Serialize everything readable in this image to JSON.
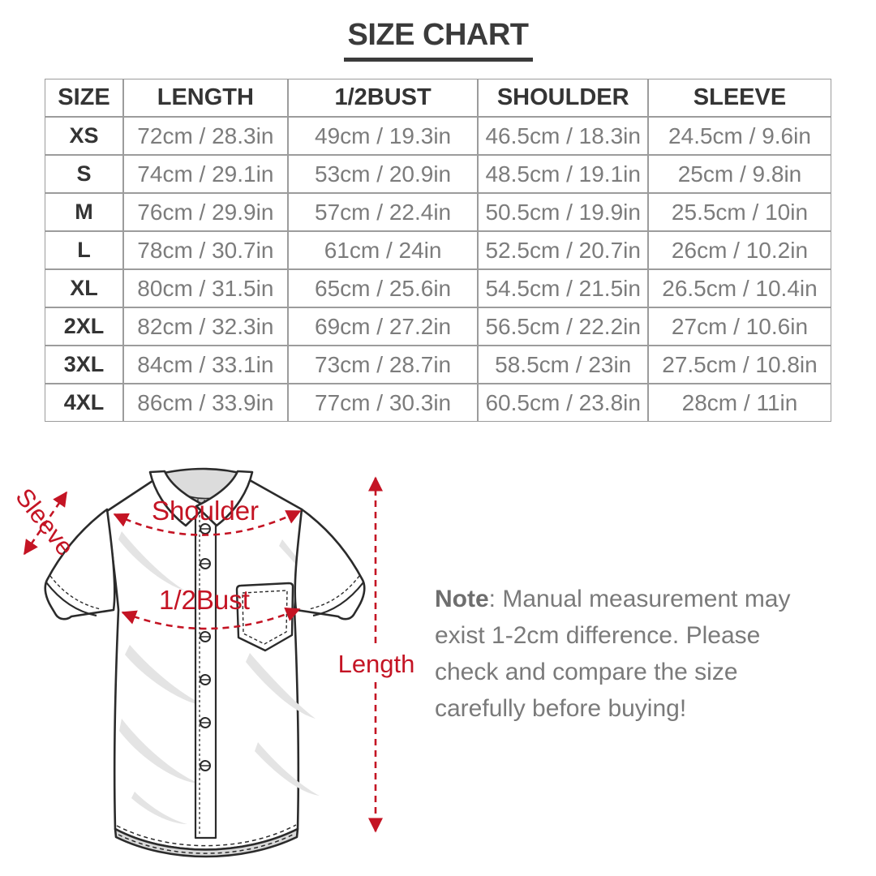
{
  "title": "SIZE CHART",
  "chart_data": {
    "type": "table",
    "title": "SIZE CHART",
    "columns": [
      "SIZE",
      "LENGTH",
      "1/2BUST",
      "SHOULDER",
      "SLEEVE"
    ],
    "rows": [
      [
        "XS",
        "72cm / 28.3in",
        "49cm / 19.3in",
        "46.5cm / 18.3in",
        "24.5cm / 9.6in"
      ],
      [
        "S",
        "74cm / 29.1in",
        "53cm / 20.9in",
        "48.5cm / 19.1in",
        "25cm / 9.8in"
      ],
      [
        "M",
        "76cm / 29.9in",
        "57cm / 22.4in",
        "50.5cm / 19.9in",
        "25.5cm / 10in"
      ],
      [
        "L",
        "78cm / 30.7in",
        "61cm / 24in",
        "52.5cm / 20.7in",
        "26cm / 10.2in"
      ],
      [
        "XL",
        "80cm / 31.5in",
        "65cm / 25.6in",
        "54.5cm / 21.5in",
        "26.5cm / 10.4in"
      ],
      [
        "2XL",
        "82cm / 32.3in",
        "69cm / 27.2in",
        "56.5cm / 22.2in",
        "27cm / 10.6in"
      ],
      [
        "3XL",
        "84cm / 33.1in",
        "73cm / 28.7in",
        "58.5cm / 23in",
        "27.5cm / 10.8in"
      ],
      [
        "4XL",
        "86cm / 33.9in",
        "77cm / 30.3in",
        "60.5cm / 23.8in",
        "28cm / 11in"
      ]
    ],
    "units_note": "values shown as cm / in"
  },
  "diagram": {
    "sleeve_label": "Sleeve",
    "shoulder_label": "Shoulder",
    "bust_label": "1/2Bust",
    "length_label": "Length",
    "accent_color": "#c41424"
  },
  "note": {
    "label": "Note",
    "body": ": Manual measurement may exist 1-2cm difference. Please check and compare the size carefully before buying!"
  }
}
